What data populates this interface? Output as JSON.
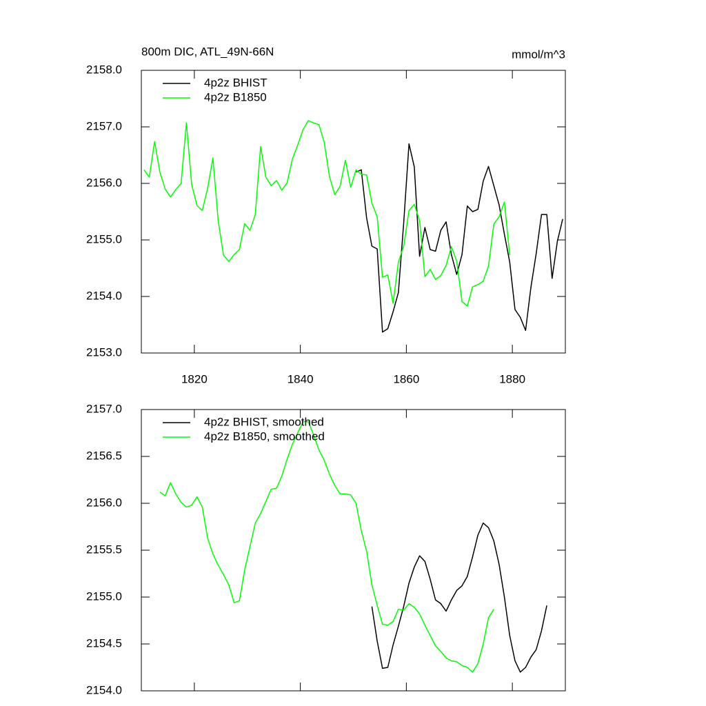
{
  "chart_data": [
    {
      "type": "line",
      "title": "800m DIC, ATL_49N-66N",
      "units": "mmol/m^3",
      "xlim": [
        1810,
        1890
      ],
      "xticks": [
        1820,
        1840,
        1860,
        1880
      ],
      "xtick_labels": true,
      "ylim": [
        2153,
        2158
      ],
      "yticks": [
        {
          "value": 2153,
          "label": "2153.0"
        },
        {
          "value": 2154,
          "label": "2154.0"
        },
        {
          "value": 2155,
          "label": "2155.0"
        },
        {
          "value": 2156,
          "label": "2156.0"
        },
        {
          "value": 2157,
          "label": "2157.0"
        },
        {
          "value": 2158,
          "label": "2158.0"
        }
      ],
      "legend": "top-left",
      "series": [
        {
          "name": "4p2z BHIST",
          "color": "#000000",
          "x": [
            1850.5,
            1851.5,
            1852.5,
            1853.5,
            1854.5,
            1855.5,
            1856.5,
            1857.5,
            1858.5,
            1859.5,
            1860.5,
            1861.5,
            1862.5,
            1863.5,
            1864.5,
            1865.5,
            1866.5,
            1867.5,
            1868.5,
            1869.5,
            1870.5,
            1871.5,
            1872.5,
            1873.5,
            1874.5,
            1875.5,
            1876.5,
            1877.5,
            1878.5,
            1879.5,
            1880.5,
            1881.5,
            1882.5,
            1883.5,
            1884.5,
            1885.5,
            1886.5,
            1887.5,
            1888.5,
            1889.5
          ],
          "values": [
            2156.2,
            2156.24,
            2155.39,
            2154.89,
            2154.84,
            2153.37,
            2153.43,
            2153.73,
            2154.07,
            2155.3,
            2156.7,
            2156.29,
            2154.71,
            2155.22,
            2154.83,
            2154.8,
            2155.17,
            2155.32,
            2154.74,
            2154.39,
            2154.74,
            2155.6,
            2155.5,
            2155.54,
            2156.04,
            2156.3,
            2155.96,
            2155.62,
            2155.1,
            2154.61,
            2153.77,
            2153.63,
            2153.4,
            2154.16,
            2154.76,
            2155.45,
            2155.45,
            2154.32,
            2154.98,
            2155.37
          ]
        },
        {
          "name": "4p2z B1850",
          "color": "#00ff00",
          "x": [
            1810.5,
            1811.5,
            1812.5,
            1813.5,
            1814.5,
            1815.5,
            1816.5,
            1817.5,
            1818.5,
            1819.5,
            1820.5,
            1821.5,
            1822.5,
            1823.5,
            1824.5,
            1825.5,
            1826.5,
            1827.5,
            1828.5,
            1829.5,
            1830.5,
            1831.5,
            1832.5,
            1833.5,
            1834.5,
            1835.5,
            1836.5,
            1837.5,
            1838.5,
            1839.5,
            1840.5,
            1841.5,
            1842.5,
            1843.5,
            1844.5,
            1845.5,
            1846.5,
            1847.5,
            1848.5,
            1849.5,
            1850.5,
            1851.5,
            1852.5,
            1853.5,
            1854.5,
            1855.5,
            1856.5,
            1857.5,
            1858.5,
            1859.5,
            1860.5,
            1861.5,
            1862.5,
            1863.5,
            1864.5,
            1865.5,
            1866.5,
            1867.5,
            1868.5,
            1869.5,
            1870.5,
            1871.5,
            1872.5,
            1873.5,
            1874.5,
            1875.5,
            1876.5,
            1877.5,
            1878.5,
            1879.5
          ],
          "values": [
            2156.24,
            2156.11,
            2156.74,
            2156.2,
            2155.9,
            2155.76,
            2155.89,
            2156.0,
            2157.07,
            2155.98,
            2155.61,
            2155.52,
            2155.91,
            2156.45,
            2155.34,
            2154.73,
            2154.62,
            2154.74,
            2154.83,
            2155.29,
            2155.17,
            2155.45,
            2156.65,
            2156.11,
            2155.96,
            2156.05,
            2155.88,
            2156.01,
            2156.43,
            2156.68,
            2156.95,
            2157.11,
            2157.07,
            2157.04,
            2156.73,
            2156.12,
            2155.8,
            2155.95,
            2156.41,
            2155.93,
            2156.24,
            2156.16,
            2156.15,
            2155.65,
            2155.41,
            2154.34,
            2154.38,
            2153.88,
            2154.61,
            2154.89,
            2155.52,
            2155.63,
            2155.34,
            2154.35,
            2154.48,
            2154.3,
            2154.37,
            2154.55,
            2154.88,
            2154.63,
            2153.91,
            2153.83,
            2154.17,
            2154.21,
            2154.27,
            2154.54,
            2155.28,
            2155.41,
            2155.67,
            2154.73
          ]
        }
      ]
    },
    {
      "type": "line",
      "xlim": [
        1810,
        1890
      ],
      "xticks": [
        1820,
        1840,
        1860,
        1880
      ],
      "xtick_labels": false,
      "ylim": [
        2154,
        2157
      ],
      "yticks": [
        {
          "value": 2154,
          "label": "2154.0"
        },
        {
          "value": 2154.5,
          "label": "2154.5"
        },
        {
          "value": 2155,
          "label": "2155.0"
        },
        {
          "value": 2155.5,
          "label": "2155.5"
        },
        {
          "value": 2156,
          "label": "2156.0"
        },
        {
          "value": 2156.5,
          "label": "2156.5"
        },
        {
          "value": 2157,
          "label": "2157.0"
        }
      ],
      "legend": "top-left",
      "series": [
        {
          "name": "4p2z BHIST, smoothed",
          "color": "#000000",
          "x": [
            1853.5,
            1854.5,
            1855.5,
            1856.5,
            1857.5,
            1858.5,
            1859.5,
            1860.5,
            1861.5,
            1862.5,
            1863.5,
            1864.5,
            1865.5,
            1866.5,
            1867.5,
            1868.5,
            1869.5,
            1870.5,
            1871.5,
            1872.5,
            1873.5,
            1874.5,
            1875.5,
            1876.5,
            1877.5,
            1878.5,
            1879.5,
            1880.5,
            1881.5,
            1882.5,
            1883.5,
            1884.5,
            1885.5,
            1886.5
          ],
          "values": [
            2154.9,
            2154.53,
            2154.24,
            2154.25,
            2154.49,
            2154.69,
            2154.9,
            2155.15,
            2155.32,
            2155.44,
            2155.38,
            2155.19,
            2154.97,
            2154.93,
            2154.85,
            2154.97,
            2155.07,
            2155.12,
            2155.22,
            2155.43,
            2155.66,
            2155.79,
            2155.74,
            2155.6,
            2155.35,
            2155.0,
            2154.59,
            2154.32,
            2154.2,
            2154.25,
            2154.36,
            2154.44,
            2154.64,
            2154.91
          ]
        },
        {
          "name": "4p2z B1850, smoothed",
          "color": "#00ff00",
          "x": [
            1813.5,
            1814.5,
            1815.5,
            1816.5,
            1817.5,
            1818.5,
            1819.5,
            1820.5,
            1821.5,
            1822.5,
            1823.5,
            1824.5,
            1825.5,
            1826.5,
            1827.5,
            1828.5,
            1829.5,
            1830.5,
            1831.5,
            1832.5,
            1833.5,
            1834.5,
            1835.5,
            1836.5,
            1837.5,
            1838.5,
            1839.5,
            1840.5,
            1841.5,
            1842.5,
            1843.5,
            1844.5,
            1845.5,
            1846.5,
            1847.5,
            1848.5,
            1849.5,
            1850.5,
            1851.5,
            1852.5,
            1853.5,
            1854.5,
            1855.5,
            1856.5,
            1857.5,
            1858.5,
            1859.5,
            1860.5,
            1861.5,
            1862.5,
            1863.5,
            1864.5,
            1865.5,
            1866.5,
            1867.5,
            1868.5,
            1869.5,
            1870.5,
            1871.5,
            1872.5,
            1873.5,
            1874.5,
            1875.5,
            1876.5
          ],
          "values": [
            2156.12,
            2156.08,
            2156.22,
            2156.1,
            2156.01,
            2155.96,
            2155.98,
            2156.07,
            2155.96,
            2155.63,
            2155.46,
            2155.34,
            2155.24,
            2155.13,
            2154.94,
            2154.96,
            2155.29,
            2155.54,
            2155.79,
            2155.89,
            2156.02,
            2156.15,
            2156.16,
            2156.29,
            2156.47,
            2156.63,
            2156.75,
            2156.87,
            2156.87,
            2156.73,
            2156.57,
            2156.46,
            2156.31,
            2156.19,
            2156.1,
            2156.1,
            2156.09,
            2156.0,
            2155.71,
            2155.49,
            2155.13,
            2154.91,
            2154.71,
            2154.7,
            2154.74,
            2154.87,
            2154.86,
            2154.93,
            2154.89,
            2154.82,
            2154.7,
            2154.59,
            2154.48,
            2154.42,
            2154.35,
            2154.32,
            2154.31,
            2154.27,
            2154.25,
            2154.2,
            2154.29,
            2154.5,
            2154.78,
            2154.87
          ]
        }
      ]
    }
  ]
}
